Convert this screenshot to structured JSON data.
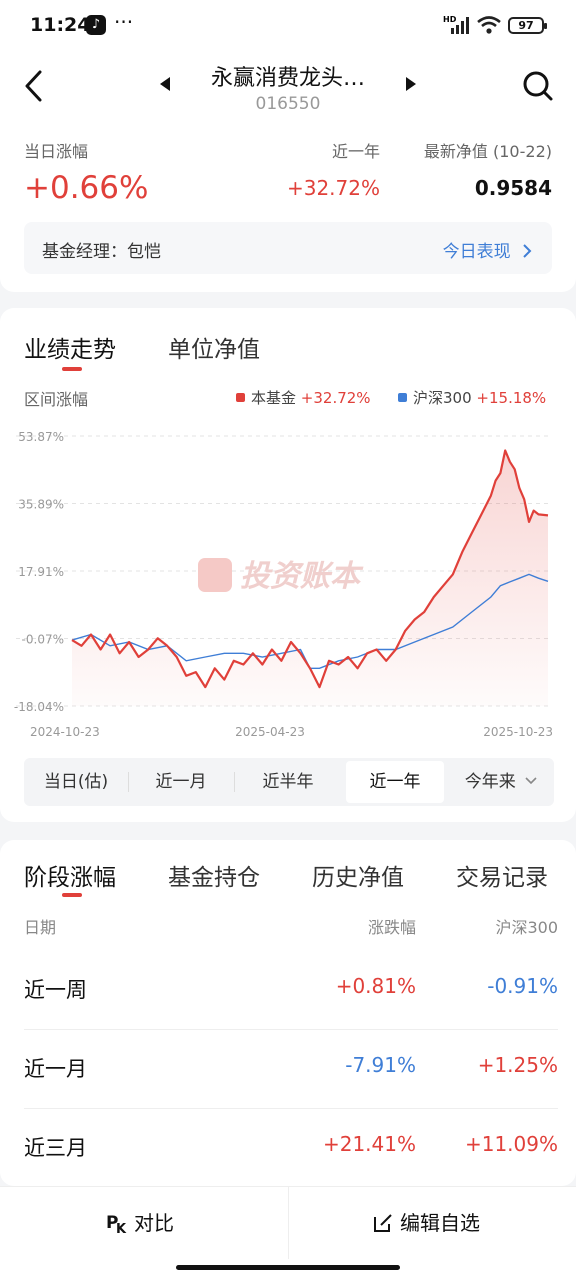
{
  "status_bar": {
    "time": "11:24",
    "dots": "···",
    "network": "HD",
    "battery": "97"
  },
  "header": {
    "fund_name": "永赢消费龙头…",
    "fund_code": "016550"
  },
  "summary": {
    "daily_change_label": "当日涨幅",
    "daily_change_value": "+0.66%",
    "year_label": "近一年",
    "year_value": "+32.72%",
    "nav_label": "最新净值 (10-22)",
    "nav_value": "0.9584",
    "manager_text": "基金经理：包恺",
    "today_link": "今日表现"
  },
  "chart_section": {
    "tabs": [
      "业绩走势",
      "单位净值"
    ],
    "range_label": "区间涨幅",
    "legend": [
      {
        "name": "本基金",
        "value": "+32.72%",
        "color": "#e0403a"
      },
      {
        "name": "沪深300",
        "value": "+15.18%",
        "color": "#3f7ed6"
      }
    ],
    "watermark": "投资账本",
    "periods": [
      "当日(估)",
      "近一月",
      "近半年",
      "近一年",
      "今年来"
    ],
    "active_period": 3
  },
  "chart_data": {
    "type": "line",
    "ylim": [
      -18.04,
      53.87
    ],
    "y_ticks": [
      "53.87%",
      "35.89%",
      "17.91%",
      "-0.07%",
      "-18.04%"
    ],
    "y_tick_values": [
      53.87,
      35.89,
      17.91,
      -0.07,
      -18.04
    ],
    "x_ticks": [
      "2024-10-23",
      "2025-04-23",
      "2025-10-23"
    ],
    "x_range": [
      0,
      100
    ],
    "x_tick_positions": [
      0,
      50,
      100
    ],
    "series": [
      {
        "name": "本基金",
        "color": "#e0403a",
        "points": [
          [
            0,
            -0.5
          ],
          [
            2,
            -2
          ],
          [
            4,
            1
          ],
          [
            6,
            -3
          ],
          [
            8,
            1
          ],
          [
            10,
            -4
          ],
          [
            12,
            -1
          ],
          [
            14,
            -5
          ],
          [
            16,
            -3
          ],
          [
            18,
            0
          ],
          [
            20,
            -2
          ],
          [
            22,
            -5
          ],
          [
            24,
            -10
          ],
          [
            26,
            -9
          ],
          [
            28,
            -13
          ],
          [
            30,
            -8
          ],
          [
            32,
            -11
          ],
          [
            34,
            -6
          ],
          [
            36,
            -7
          ],
          [
            38,
            -4
          ],
          [
            40,
            -7
          ],
          [
            42,
            -3
          ],
          [
            44,
            -6
          ],
          [
            46,
            -1
          ],
          [
            48,
            -4
          ],
          [
            50,
            -8
          ],
          [
            52,
            -13
          ],
          [
            54,
            -6
          ],
          [
            56,
            -7
          ],
          [
            58,
            -5
          ],
          [
            60,
            -8
          ],
          [
            62,
            -4
          ],
          [
            64,
            -3
          ],
          [
            66,
            -6
          ],
          [
            68,
            -3
          ],
          [
            70,
            2
          ],
          [
            72,
            5
          ],
          [
            74,
            7
          ],
          [
            76,
            11
          ],
          [
            78,
            14
          ],
          [
            80,
            17
          ],
          [
            82,
            23
          ],
          [
            84,
            28
          ],
          [
            86,
            33
          ],
          [
            88,
            38
          ],
          [
            89,
            42
          ],
          [
            90,
            44
          ],
          [
            91,
            50
          ],
          [
            92,
            47
          ],
          [
            93,
            45
          ],
          [
            94,
            40
          ],
          [
            95,
            37
          ],
          [
            96,
            31
          ],
          [
            97,
            34
          ],
          [
            98,
            33
          ],
          [
            100,
            32.72
          ]
        ]
      },
      {
        "name": "沪深300",
        "color": "#3f7ed6",
        "points": [
          [
            0,
            -0.5
          ],
          [
            4,
            1
          ],
          [
            8,
            -2
          ],
          [
            12,
            -1
          ],
          [
            16,
            -3
          ],
          [
            20,
            -2
          ],
          [
            24,
            -6
          ],
          [
            28,
            -5
          ],
          [
            32,
            -4
          ],
          [
            36,
            -4
          ],
          [
            40,
            -5
          ],
          [
            44,
            -4
          ],
          [
            48,
            -3
          ],
          [
            50,
            -8
          ],
          [
            52,
            -8
          ],
          [
            56,
            -6
          ],
          [
            60,
            -5
          ],
          [
            64,
            -3
          ],
          [
            68,
            -3
          ],
          [
            72,
            -1
          ],
          [
            76,
            1
          ],
          [
            80,
            3
          ],
          [
            84,
            7
          ],
          [
            88,
            11
          ],
          [
            90,
            14
          ],
          [
            92,
            15
          ],
          [
            94,
            16
          ],
          [
            96,
            17
          ],
          [
            98,
            16
          ],
          [
            100,
            15.18
          ]
        ]
      }
    ]
  },
  "stage_section": {
    "tabs": [
      "阶段涨幅",
      "基金持仓",
      "历史净值",
      "交易记录"
    ],
    "columns": [
      "日期",
      "涨跌幅",
      "沪深300"
    ],
    "rows": [
      {
        "period": "近一周",
        "fund": "+0.81%",
        "index": "-0.91%"
      },
      {
        "period": "近一月",
        "fund": "-7.91%",
        "index": "+1.25%"
      },
      {
        "period": "近三月",
        "fund": "+21.41%",
        "index": "+11.09%"
      }
    ]
  },
  "bottom_bar": {
    "compare": "对比",
    "edit": "编辑自选"
  }
}
